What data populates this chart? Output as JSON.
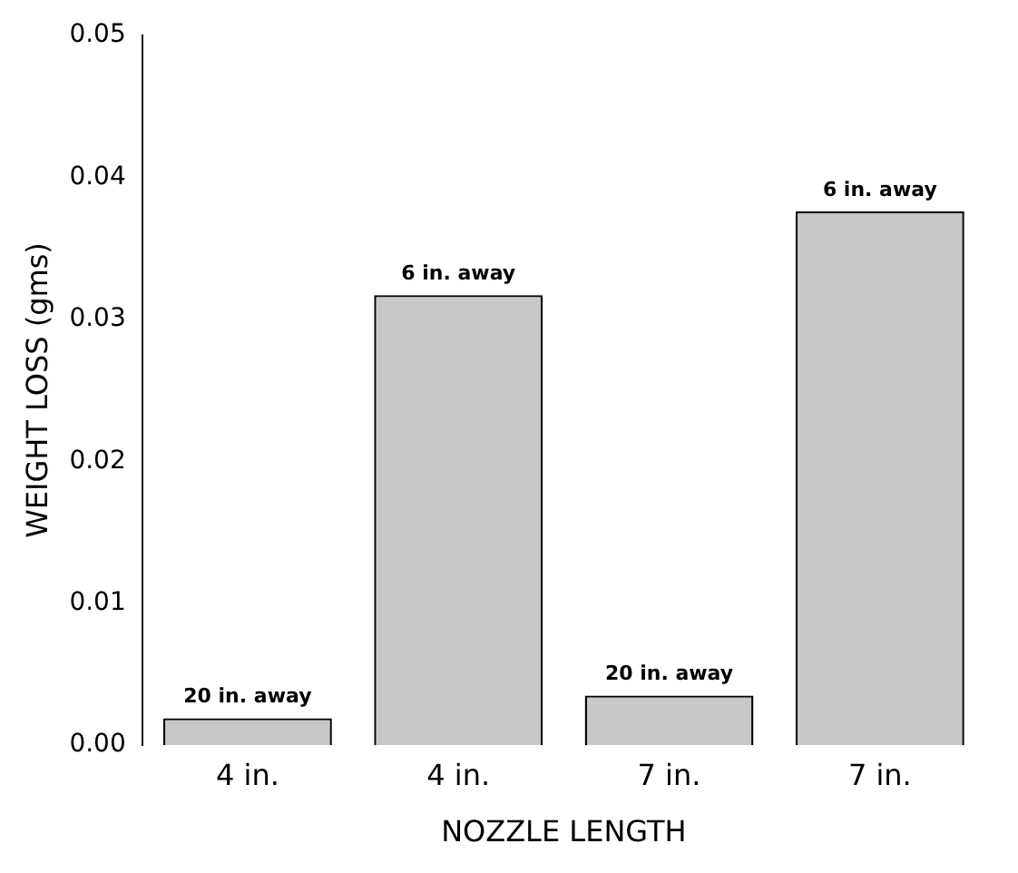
{
  "chart_data": {
    "type": "bar",
    "xlabel": "NOZZLE LENGTH",
    "ylabel": "WEIGHT LOSS (gms)",
    "categories": [
      "4 in.",
      "4 in.",
      "7 in.",
      "7 in."
    ],
    "values": [
      0.0019,
      0.0317,
      0.0035,
      0.0376
    ],
    "color": "#c8c8c8",
    "ylim": [
      0,
      0.05
    ],
    "yticks": [
      {
        "value": 0,
        "label": "0.00"
      },
      0.01,
      0.02,
      0.03,
      0.04,
      0.05
    ],
    "grid": false,
    "legend": false,
    "annotations": [
      "20 in. away",
      "6 in. away",
      "20 in. away",
      "6 in. away"
    ]
  }
}
